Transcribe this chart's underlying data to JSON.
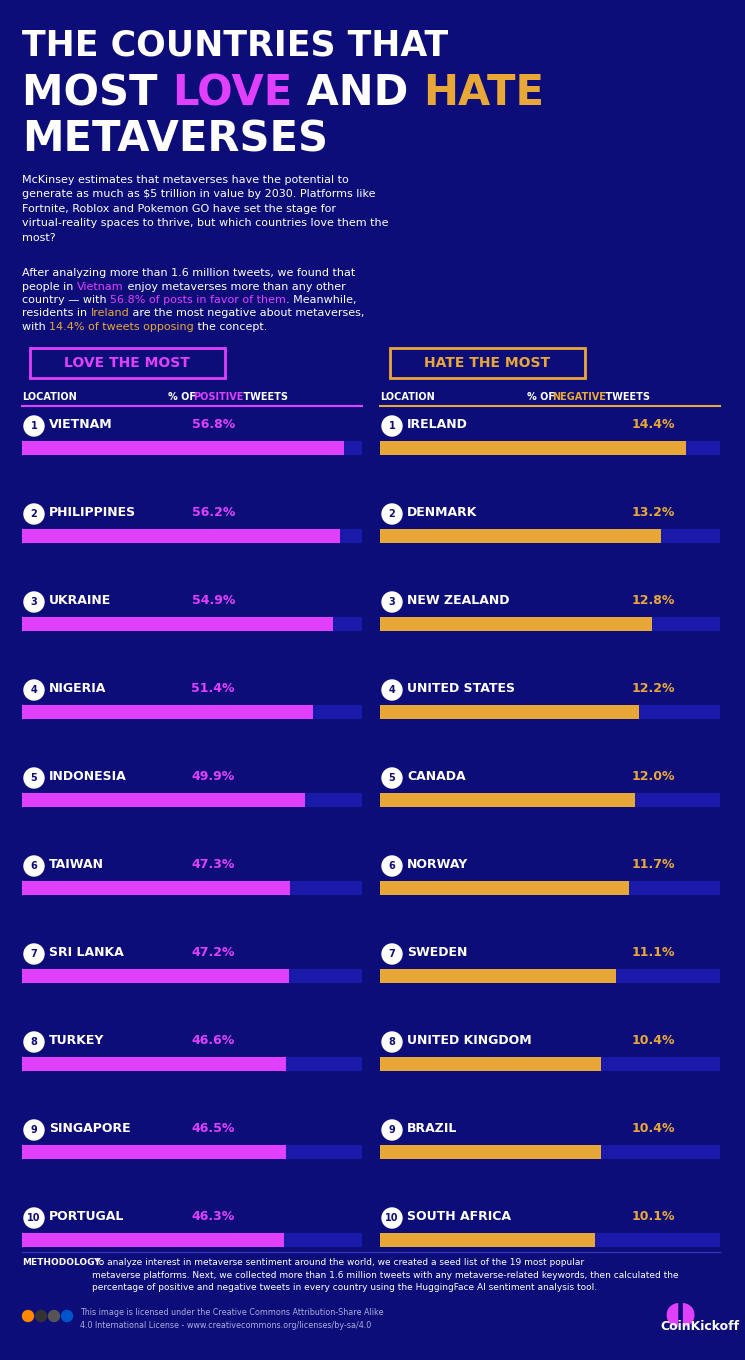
{
  "bg_color": "#0d0d7a",
  "title_line1": "THE COUNTRIES THAT",
  "title_line3": "METAVERSES",
  "body_text1": "McKinsey estimates that metaverses have the potential to\ngenerate as much as $5 trillion in value by 2030. Platforms like\nFortnite, Roblox and Pokemon GO have set the stage for\nvirtual-reality spaces to thrive, but which countries love them the\nmost?",
  "love_countries": [
    "VIETNAM",
    "PHILIPPINES",
    "UKRAINE",
    "NIGERIA",
    "INDONESIA",
    "TAIWAN",
    "SRI LANKA",
    "TURKEY",
    "SINGAPORE",
    "PORTUGAL"
  ],
  "love_values": [
    56.8,
    56.2,
    54.9,
    51.4,
    49.9,
    47.3,
    47.2,
    46.6,
    46.5,
    46.3
  ],
  "hate_countries": [
    "IRELAND",
    "DENMARK",
    "NEW ZEALAND",
    "UNITED STATES",
    "CANADA",
    "NORWAY",
    "SWEDEN",
    "UNITED KINGDOM",
    "BRAZIL",
    "SOUTH AFRICA"
  ],
  "hate_values": [
    14.4,
    13.2,
    12.8,
    12.2,
    12.0,
    11.7,
    11.1,
    10.4,
    10.4,
    10.1
  ],
  "love_bar_color": "#e040fb",
  "hate_bar_color": "#e8a838",
  "bar_bg_color": "#1a1aaa",
  "methodology_text": "METHODOLOGY: To analyze interest in metaverse sentiment around the world, we created a seed list of the 19 most popular metaverse platforms. Next, we collected more than 1.6 million tweets with any metaverse-related keywords, then calculated the percentage of positive and negative tweets in every country using the HuggingFace AI sentiment analysis tool.",
  "footer_license": "This image is licensed under the Creative Commons Attribution-Share Alike 4.0 International License - www.creativecommons.org/licenses/by-sa/4.0"
}
